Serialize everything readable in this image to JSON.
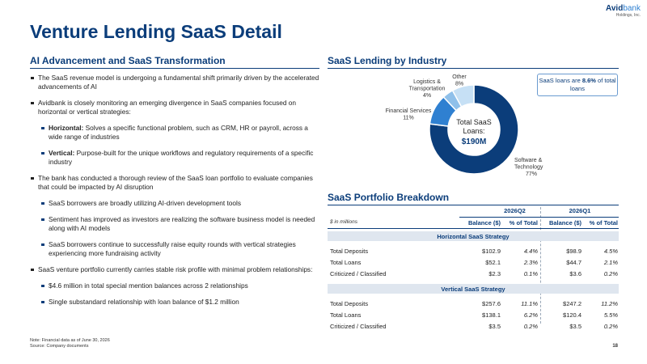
{
  "logo": {
    "main": "Avid",
    "accent": "bank",
    "sub": "Holdings, Inc."
  },
  "page_title": "Venture Lending SaaS Detail",
  "left": {
    "heading": "AI Advancement and SaaS Transformation",
    "bullets": [
      {
        "level": 1,
        "text": "The SaaS revenue model is undergoing a fundamental shift primarily driven by the accelerated advancements of AI"
      },
      {
        "level": 1,
        "text": "Avidbank is closely monitoring an emerging divergence in SaaS companies focused on horizontal or vertical strategies:"
      },
      {
        "level": 2,
        "bold": "Horizontal:",
        "text": " Solves a specific functional problem, such as CRM, HR or payroll, across a wide range of industries"
      },
      {
        "level": 2,
        "bold": "Vertical:",
        "text": " Purpose-built for the unique workflows and regulatory requirements of a specific industry"
      },
      {
        "level": 1,
        "text": "The bank has conducted a thorough review of the SaaS loan portfolio to evaluate companies that could be impacted by AI disruption"
      },
      {
        "level": 2,
        "bold": "",
        "text": "SaaS borrowers are broadly utilizing AI-driven development tools"
      },
      {
        "level": 2,
        "bold": "",
        "text": "Sentiment has improved as investors are realizing the software business model is needed along with AI models"
      },
      {
        "level": 2,
        "bold": "",
        "text": "SaaS borrowers continue to successfully raise equity rounds with vertical strategies experiencing more fundraising activity"
      },
      {
        "level": 1,
        "text": "SaaS venture portfolio currently carries stable risk profile with minimal problem relationships:"
      },
      {
        "level": 2,
        "bold": "",
        "text": "$4.6 million in total special mention balances across 2 relationships"
      },
      {
        "level": 2,
        "bold": "",
        "text": "Single substandard relationship with loan balance of $1.2 million"
      }
    ]
  },
  "industry": {
    "heading": "SaaS Lending by Industry",
    "center_line1": "Total SaaS",
    "center_line2": "Loans:",
    "center_value": "$190M",
    "callout_pre": "SaaS loans are ",
    "callout_bold": "8.6%",
    "callout_post": " of total loans"
  },
  "chart_data": {
    "type": "pie",
    "title": "",
    "donut": true,
    "slices": [
      {
        "label": "Software & Technology",
        "value": 77,
        "display": "77%",
        "color": "#0b3d7a"
      },
      {
        "label": "Financial Services",
        "value": 11,
        "display": "11%",
        "color": "#2f80d1"
      },
      {
        "label": "Logistics & Transportation",
        "value": 4,
        "display": "4%",
        "color": "#8fc0ea"
      },
      {
        "label": "Other",
        "value": 8,
        "display": "8%",
        "color": "#c6e0f5"
      }
    ]
  },
  "portfolio": {
    "heading": "SaaS Portfolio Breakdown",
    "units": "$ in millions",
    "periods": [
      "2026Q2",
      "2026Q1"
    ],
    "col_balance": "Balance ($)",
    "col_pct": "% of Total",
    "groups": [
      {
        "name": "Horizontal SaaS Strategy",
        "rows": [
          {
            "label": "Total Deposits",
            "q2_bal": "$102.9",
            "q2_pct": "4.4%",
            "q1_bal": "$98.9",
            "q1_pct": "4.5%"
          },
          {
            "label": "Total Loans",
            "q2_bal": "$52.1",
            "q2_pct": "2.3%",
            "q1_bal": "$44.7",
            "q1_pct": "2.1%"
          },
          {
            "label": "Criticized  / Classified",
            "q2_bal": "$2.3",
            "q2_pct": "0.1%",
            "q1_bal": "$3.6",
            "q1_pct": "0.2%"
          }
        ]
      },
      {
        "name": "Vertical SaaS Strategy",
        "rows": [
          {
            "label": "Total Deposits",
            "q2_bal": "$257.6",
            "q2_pct": "11.1%",
            "q1_bal": "$247.2",
            "q1_pct": "11.2%"
          },
          {
            "label": "Total Loans",
            "q2_bal": "$138.1",
            "q2_pct": "6.2%",
            "q1_bal": "$120.4",
            "q1_pct": "5.5%"
          },
          {
            "label": "Criticized  / Classified",
            "q2_bal": "$3.5",
            "q2_pct": "0.2%",
            "q1_bal": "$3.5",
            "q1_pct": "0.2%"
          }
        ]
      }
    ]
  },
  "footer": {
    "note": "Note: Financial data as of June 30, 2026",
    "source": "Source: Company documents",
    "page": "18"
  }
}
